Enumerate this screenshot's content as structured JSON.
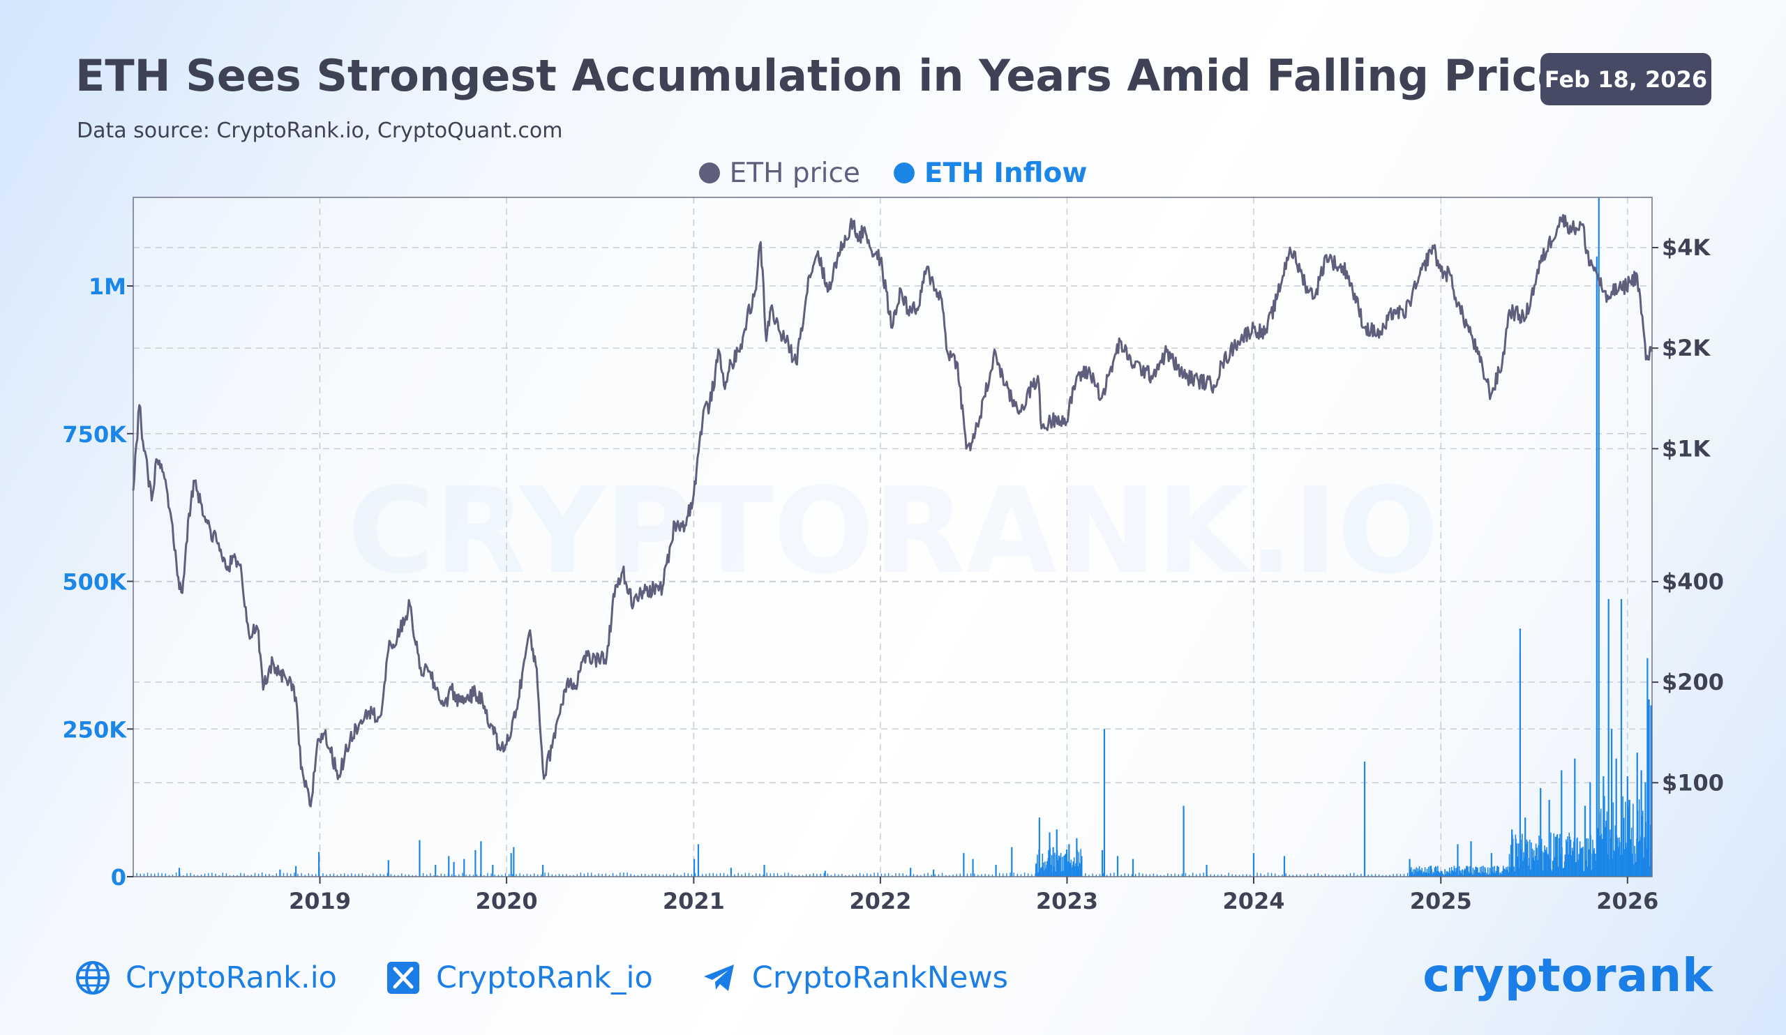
{
  "header": {
    "title": "ETH Sees Strongest Accumulation in Years Amid Falling Prices",
    "source": "Data source: CryptoRank.io, CryptoQuant.com",
    "date_badge": "Feb 18, 2026"
  },
  "watermark": "CRYPTORANK.IO",
  "colors": {
    "price": "#5f5f7d",
    "inflow": "#1b86e8",
    "badge": "#464a64",
    "brand": "#1a7ee6"
  },
  "chart_data": {
    "type": "line",
    "title": "ETH Sees Strongest Accumulation in Years Amid Falling Prices",
    "legend": [
      "ETH price",
      "ETH Inflow"
    ],
    "legend_placement": "top-center",
    "grid": true,
    "x_ticks": [
      "2019",
      "2020",
      "2021",
      "2022",
      "2023",
      "2024",
      "2025",
      "2026"
    ],
    "xlim": [
      "2018-01-01",
      "2026-02-18"
    ],
    "y_left": {
      "label": "ETH Inflow",
      "ticks": [
        0,
        250000,
        500000,
        750000,
        1000000
      ],
      "tick_labels": [
        "0",
        "250K",
        "500K",
        "750K",
        "1M"
      ],
      "ylim": [
        0,
        1150000
      ]
    },
    "y_right": {
      "label": "ETH price",
      "scale": "log",
      "ticks": [
        100,
        200,
        400,
        1000,
        2000,
        4000
      ],
      "tick_labels": [
        "$100",
        "$200",
        "$400",
        "$1K",
        "$2K",
        "$4K"
      ]
    },
    "series": [
      {
        "name": "ETH price",
        "axis": "right",
        "points": [
          [
            "2018-01-01",
            750
          ],
          [
            "2018-01-13",
            1350
          ],
          [
            "2018-01-20",
            1050
          ],
          [
            "2018-02-06",
            700
          ],
          [
            "2018-02-15",
            930
          ],
          [
            "2018-03-01",
            850
          ],
          [
            "2018-03-15",
            640
          ],
          [
            "2018-04-01",
            380
          ],
          [
            "2018-04-07",
            370
          ],
          [
            "2018-04-20",
            640
          ],
          [
            "2018-05-01",
            800
          ],
          [
            "2018-05-15",
            680
          ],
          [
            "2018-06-01",
            570
          ],
          [
            "2018-06-15",
            520
          ],
          [
            "2018-07-01",
            440
          ],
          [
            "2018-07-20",
            470
          ],
          [
            "2018-08-01",
            420
          ],
          [
            "2018-08-15",
            280
          ],
          [
            "2018-09-01",
            290
          ],
          [
            "2018-09-12",
            190
          ],
          [
            "2018-10-01",
            230
          ],
          [
            "2018-10-15",
            210
          ],
          [
            "2018-11-01",
            200
          ],
          [
            "2018-11-15",
            180
          ],
          [
            "2018-11-25",
            110
          ],
          [
            "2018-12-14",
            85
          ],
          [
            "2018-12-28",
            135
          ],
          [
            "2019-01-10",
            140
          ],
          [
            "2019-02-07",
            105
          ],
          [
            "2019-03-01",
            135
          ],
          [
            "2019-04-01",
            165
          ],
          [
            "2019-04-15",
            160
          ],
          [
            "2019-05-01",
            160
          ],
          [
            "2019-05-15",
            250
          ],
          [
            "2019-06-01",
            270
          ],
          [
            "2019-06-26",
            340
          ],
          [
            "2019-07-15",
            220
          ],
          [
            "2019-08-01",
            215
          ],
          [
            "2019-09-01",
            170
          ],
          [
            "2019-09-15",
            190
          ],
          [
            "2019-10-01",
            175
          ],
          [
            "2019-10-15",
            180
          ],
          [
            "2019-11-01",
            185
          ],
          [
            "2019-11-15",
            175
          ],
          [
            "2019-12-01",
            150
          ],
          [
            "2019-12-20",
            125
          ],
          [
            "2020-01-01",
            130
          ],
          [
            "2020-01-20",
            165
          ],
          [
            "2020-02-14",
            280
          ],
          [
            "2020-02-29",
            220
          ],
          [
            "2020-03-12",
            110
          ],
          [
            "2020-03-16",
            105
          ],
          [
            "2020-04-01",
            135
          ],
          [
            "2020-04-30",
            205
          ],
          [
            "2020-05-15",
            195
          ],
          [
            "2020-06-01",
            240
          ],
          [
            "2020-06-30",
            230
          ],
          [
            "2020-07-15",
            240
          ],
          [
            "2020-08-01",
            390
          ],
          [
            "2020-08-15",
            430
          ],
          [
            "2020-09-05",
            340
          ],
          [
            "2020-09-20",
            370
          ],
          [
            "2020-10-15",
            380
          ],
          [
            "2020-11-01",
            385
          ],
          [
            "2020-11-25",
            600
          ],
          [
            "2020-12-15",
            590
          ],
          [
            "2021-01-01",
            730
          ],
          [
            "2021-01-20",
            1300
          ],
          [
            "2021-02-01",
            1350
          ],
          [
            "2021-02-20",
            1950
          ],
          [
            "2021-03-01",
            1550
          ],
          [
            "2021-03-15",
            1800
          ],
          [
            "2021-04-01",
            1950
          ],
          [
            "2021-04-15",
            2450
          ],
          [
            "2021-05-01",
            2950
          ],
          [
            "2021-05-12",
            4150
          ],
          [
            "2021-05-23",
            2100
          ],
          [
            "2021-06-01",
            2650
          ],
          [
            "2021-06-20",
            2200
          ],
          [
            "2021-07-01",
            2100
          ],
          [
            "2021-07-20",
            1800
          ],
          [
            "2021-08-15",
            3300
          ],
          [
            "2021-09-01",
            3900
          ],
          [
            "2021-09-20",
            2950
          ],
          [
            "2021-10-01",
            3400
          ],
          [
            "2021-10-20",
            4100
          ],
          [
            "2021-11-09",
            4800
          ],
          [
            "2021-11-20",
            4200
          ],
          [
            "2021-12-01",
            4600
          ],
          [
            "2021-12-15",
            3900
          ],
          [
            "2022-01-01",
            3700
          ],
          [
            "2022-01-24",
            2300
          ],
          [
            "2022-02-10",
            3000
          ],
          [
            "2022-02-24",
            2600
          ],
          [
            "2022-03-15",
            2600
          ],
          [
            "2022-04-01",
            3450
          ],
          [
            "2022-04-20",
            3000
          ],
          [
            "2022-05-01",
            2800
          ],
          [
            "2022-05-12",
            1950
          ],
          [
            "2022-06-01",
            1800
          ],
          [
            "2022-06-18",
            1000
          ],
          [
            "2022-06-30",
            1050
          ],
          [
            "2022-07-15",
            1250
          ],
          [
            "2022-08-14",
            1950
          ],
          [
            "2022-09-01",
            1550
          ],
          [
            "2022-09-15",
            1400
          ],
          [
            "2022-10-01",
            1300
          ],
          [
            "2022-11-05",
            1650
          ],
          [
            "2022-11-12",
            1150
          ],
          [
            "2022-12-15",
            1250
          ],
          [
            "2022-12-31",
            1200
          ],
          [
            "2023-01-20",
            1650
          ],
          [
            "2023-02-15",
            1700
          ],
          [
            "2023-03-10",
            1420
          ],
          [
            "2023-04-15",
            2100
          ],
          [
            "2023-05-01",
            1850
          ],
          [
            "2023-06-15",
            1650
          ],
          [
            "2023-07-15",
            1950
          ],
          [
            "2023-08-17",
            1650
          ],
          [
            "2023-09-15",
            1600
          ],
          [
            "2023-10-15",
            1550
          ],
          [
            "2023-11-01",
            1800
          ],
          [
            "2023-12-01",
            2100
          ],
          [
            "2024-01-01",
            2300
          ],
          [
            "2024-01-23",
            2200
          ],
          [
            "2024-02-15",
            2800
          ],
          [
            "2024-03-12",
            4000
          ],
          [
            "2024-04-01",
            3400
          ],
          [
            "2024-04-18",
            2950
          ],
          [
            "2024-05-01",
            2900
          ],
          [
            "2024-05-22",
            3800
          ],
          [
            "2024-06-15",
            3500
          ],
          [
            "2024-07-01",
            3400
          ],
          [
            "2024-08-05",
            2300
          ],
          [
            "2024-09-06",
            2200
          ],
          [
            "2024-10-01",
            2600
          ],
          [
            "2024-10-20",
            2500
          ],
          [
            "2024-11-15",
            3100
          ],
          [
            "2024-12-16",
            4050
          ],
          [
            "2025-01-01",
            3400
          ],
          [
            "2025-01-20",
            3300
          ],
          [
            "2025-02-03",
            2700
          ],
          [
            "2025-03-01",
            2200
          ],
          [
            "2025-04-09",
            1450
          ],
          [
            "2025-05-01",
            1800
          ],
          [
            "2025-05-15",
            2600
          ],
          [
            "2025-06-15",
            2450
          ],
          [
            "2025-07-15",
            3600
          ],
          [
            "2025-08-24",
            4900
          ],
          [
            "2025-09-15",
            4550
          ],
          [
            "2025-10-06",
            4700
          ],
          [
            "2025-10-12",
            3850
          ],
          [
            "2025-11-04",
            3300
          ],
          [
            "2025-11-21",
            2750
          ],
          [
            "2025-12-01",
            2950
          ],
          [
            "2025-12-20",
            3000
          ],
          [
            "2026-01-05",
            3150
          ],
          [
            "2026-01-20",
            3300
          ],
          [
            "2026-02-01",
            2300
          ],
          [
            "2026-02-06",
            1850
          ],
          [
            "2026-02-18",
            1950
          ]
        ]
      },
      {
        "name": "ETH Inflow",
        "axis": "left",
        "spikes": [
          [
            "2018-04-01",
            15000
          ],
          [
            "2018-10-15",
            12000
          ],
          [
            "2018-11-15",
            18000
          ],
          [
            "2018-12-30",
            42000
          ],
          [
            "2019-05-15",
            28000
          ],
          [
            "2019-07-15",
            62000
          ],
          [
            "2019-08-15",
            20000
          ],
          [
            "2019-09-10",
            35000
          ],
          [
            "2019-09-20",
            25000
          ],
          [
            "2019-10-10",
            30000
          ],
          [
            "2019-11-01",
            45000
          ],
          [
            "2019-11-12",
            60000
          ],
          [
            "2019-12-05",
            20000
          ],
          [
            "2020-01-10",
            40000
          ],
          [
            "2020-01-15",
            50000
          ],
          [
            "2020-03-12",
            20000
          ],
          [
            "2021-01-02",
            30000
          ],
          [
            "2021-01-10",
            55000
          ],
          [
            "2021-03-15",
            15000
          ],
          [
            "2021-05-19",
            20000
          ],
          [
            "2021-09-15",
            10000
          ],
          [
            "2022-03-01",
            15000
          ],
          [
            "2022-04-15",
            12000
          ],
          [
            "2022-06-13",
            40000
          ],
          [
            "2022-07-01",
            30000
          ],
          [
            "2022-08-15",
            20000
          ],
          [
            "2022-09-15",
            50000
          ],
          [
            "2022-11-08",
            100000
          ],
          [
            "2022-11-28",
            75000
          ],
          [
            "2022-12-05",
            50000
          ],
          [
            "2022-12-12",
            80000
          ],
          [
            "2023-01-05",
            55000
          ],
          [
            "2023-01-20",
            65000
          ],
          [
            "2023-03-11",
            45000
          ],
          [
            "2023-03-15",
            250000
          ],
          [
            "2023-04-10",
            35000
          ],
          [
            "2023-05-10",
            30000
          ],
          [
            "2023-08-17",
            120000
          ],
          [
            "2023-10-01",
            20000
          ],
          [
            "2024-01-01",
            40000
          ],
          [
            "2024-03-01",
            35000
          ],
          [
            "2024-08-05",
            195000
          ],
          [
            "2024-11-01",
            30000
          ],
          [
            "2025-02-03",
            55000
          ],
          [
            "2025-03-01",
            60000
          ],
          [
            "2025-04-10",
            40000
          ],
          [
            "2025-05-20",
            80000
          ],
          [
            "2025-06-05",
            420000
          ],
          [
            "2025-06-15",
            100000
          ],
          [
            "2025-07-15",
            150000
          ],
          [
            "2025-08-01",
            130000
          ],
          [
            "2025-08-25",
            180000
          ],
          [
            "2025-09-20",
            200000
          ],
          [
            "2025-10-10",
            120000
          ],
          [
            "2025-10-20",
            160000
          ],
          [
            "2025-11-02",
            1050000
          ],
          [
            "2025-11-06",
            1150000
          ],
          [
            "2025-11-15",
            170000
          ],
          [
            "2025-11-25",
            470000
          ],
          [
            "2025-12-01",
            250000
          ],
          [
            "2025-12-10",
            200000
          ],
          [
            "2025-12-20",
            470000
          ],
          [
            "2026-01-01",
            170000
          ],
          [
            "2026-01-05",
            130000
          ],
          [
            "2026-01-20",
            210000
          ],
          [
            "2026-01-28",
            180000
          ],
          [
            "2026-02-05",
            160000
          ],
          [
            "2026-02-09",
            370000
          ],
          [
            "2026-02-12",
            300000
          ],
          [
            "2026-02-16",
            290000
          ]
        ],
        "active_periods": [
          {
            "from": "2022-11-01",
            "to": "2023-01-31",
            "level": 40000
          },
          {
            "from": "2024-11-01",
            "to": "2025-05-15",
            "level": 15000
          },
          {
            "from": "2025-05-15",
            "to": "2025-10-31",
            "level": 60000
          },
          {
            "from": "2025-11-01",
            "to": "2026-02-18",
            "level": 110000
          }
        ]
      }
    ]
  },
  "footer": {
    "website": "CryptoRank.io",
    "twitter": "CryptoRank_io",
    "telegram": "CryptoRankNews",
    "logo_text": "cryptorank",
    "icons": {
      "website": "globe-icon",
      "twitter": "x-icon",
      "telegram": "telegram-icon"
    }
  }
}
